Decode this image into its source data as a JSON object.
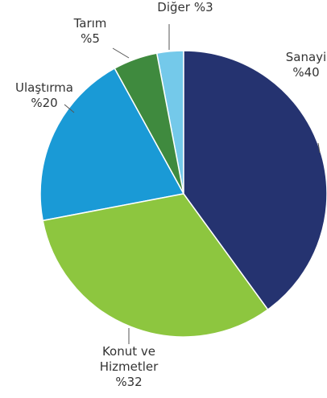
{
  "chart_data": {
    "type": "pie",
    "categories": [
      "Sanayi",
      "Konut ve Hizmetler",
      "Ulaştırma",
      "Tarım",
      "Diğer"
    ],
    "values": [
      40,
      32,
      20,
      5,
      3
    ],
    "value_labels": [
      "%40",
      "%32",
      "%20",
      "%5",
      "%3"
    ],
    "colors": [
      "#253370",
      "#8dc63f",
      "#1a9ad6",
      "#3f8a3e",
      "#74c9ea"
    ]
  }
}
